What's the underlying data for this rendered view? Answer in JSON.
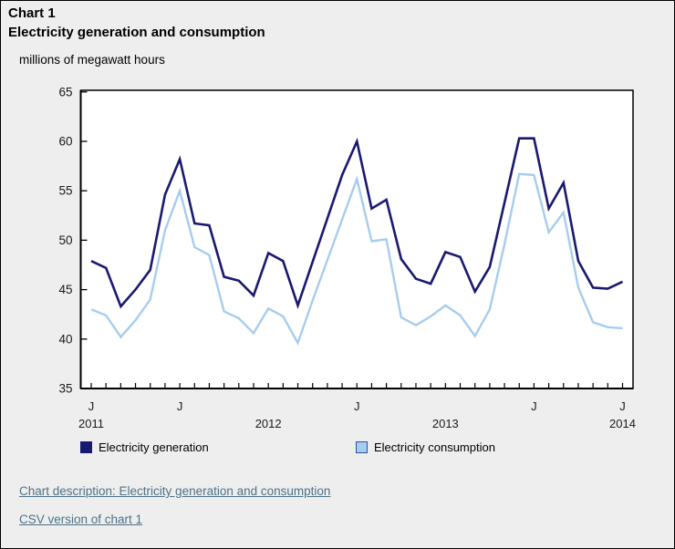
{
  "page": {
    "chart_label": "Chart 1",
    "title": "Electricity generation and consumption",
    "unit_label": "millions of megawatt hours"
  },
  "colors": {
    "background": "#eeeeee",
    "plot_background": "#ffffff",
    "axis": "#000000",
    "tick_text": "#1a1a1a",
    "link": "#4e7287",
    "generation": "#191970",
    "consumption": "#a6cdee",
    "consumption_swatch_border": "#2b549b"
  },
  "chart_data": {
    "type": "line",
    "title": "Electricity generation and consumption",
    "ylabel": "millions of megawatt hours",
    "xlabel": "",
    "grid": false,
    "legend_position": "bottom",
    "ylim": [
      35,
      65.2
    ],
    "y_ticks": [
      35,
      40,
      45,
      50,
      55,
      60,
      65
    ],
    "x": [
      "2011-01",
      "2011-02",
      "2011-03",
      "2011-04",
      "2011-05",
      "2011-06",
      "2011-07",
      "2011-08",
      "2011-09",
      "2011-10",
      "2011-11",
      "2011-12",
      "2012-01",
      "2012-02",
      "2012-03",
      "2012-04",
      "2012-05",
      "2012-06",
      "2012-07",
      "2012-08",
      "2012-09",
      "2012-10",
      "2012-11",
      "2012-12",
      "2013-01",
      "2013-02",
      "2013-03",
      "2013-04",
      "2013-05",
      "2013-06",
      "2013-07",
      "2013-08",
      "2013-09",
      "2013-10",
      "2013-11",
      "2013-12",
      "2014-01"
    ],
    "x_month_labels": [
      {
        "month_index": 0,
        "label": "J"
      },
      {
        "month_index": 6,
        "label": "J"
      },
      {
        "month_index": 18,
        "label": "J"
      },
      {
        "month_index": 30,
        "label": "J"
      },
      {
        "month_index": 36,
        "label": "J"
      }
    ],
    "x_year_labels": [
      {
        "month_index": 0,
        "label": "2011"
      },
      {
        "month_index": 12,
        "label": "2012"
      },
      {
        "month_index": 24,
        "label": "2013"
      },
      {
        "month_index": 36,
        "label": "2014"
      }
    ],
    "series": [
      {
        "name": "Electricity generation",
        "color": "#191970",
        "values": [
          47.9,
          47.2,
          43.3,
          45.0,
          47.0,
          54.6,
          58.2,
          51.7,
          51.5,
          46.3,
          45.9,
          44.4,
          48.7,
          47.9,
          43.4,
          47.8,
          52.2,
          56.6,
          60.0,
          53.2,
          54.1,
          48.1,
          46.1,
          45.6,
          48.8,
          48.3,
          44.8,
          47.3,
          53.8,
          60.3,
          60.3,
          53.2,
          55.8,
          47.9,
          45.2,
          45.1,
          45.8
        ]
      },
      {
        "name": "Electricity consumption",
        "color": "#a6cdee",
        "values": [
          43.0,
          42.4,
          40.2,
          41.9,
          44.0,
          51.0,
          55.0,
          49.3,
          48.5,
          42.8,
          42.1,
          40.6,
          43.1,
          42.3,
          39.6,
          43.9,
          48.0,
          52.1,
          56.2,
          49.9,
          50.1,
          42.2,
          41.4,
          42.3,
          43.4,
          42.4,
          40.3,
          43.0,
          49.6,
          56.7,
          56.6,
          50.8,
          52.8,
          45.2,
          41.7,
          41.2,
          41.1
        ]
      }
    ]
  },
  "legend": {
    "items": [
      {
        "label": "Electricity generation",
        "color": "#191970",
        "border": "#191970"
      },
      {
        "label": "Electricity consumption",
        "color": "#a6cdee",
        "border": "#2b549b"
      }
    ]
  },
  "links": [
    {
      "label": "Chart description: Electricity generation and consumption"
    },
    {
      "label": "CSV version of chart 1"
    }
  ]
}
